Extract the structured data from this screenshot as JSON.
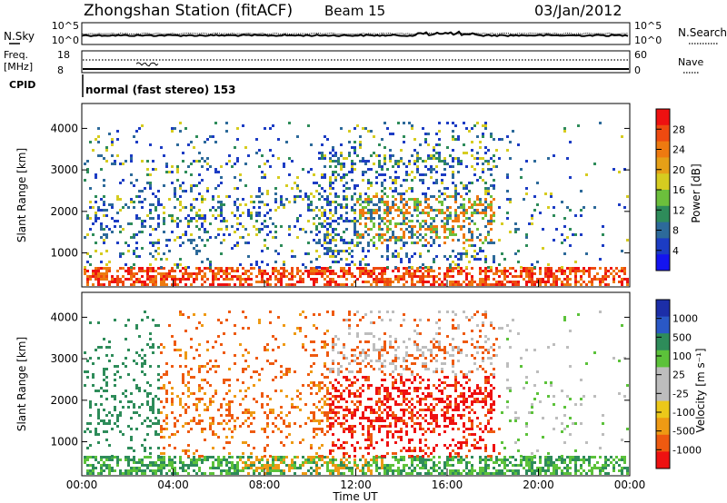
{
  "header": {
    "station": "Zhongshan Station (fitACF)",
    "beam": "Beam 15",
    "date": "03/Jan/2012"
  },
  "status_panels": {
    "nsky_label": "N.Sky",
    "nsky_ticks": [
      "10^5",
      "10^0"
    ],
    "nsearch_label": "N.Search",
    "nsearch_ticks": [
      "10^5",
      "10^0"
    ],
    "freq_label": "Freq.",
    "freq_unit": "[MHz]",
    "freq_ticks": [
      "18",
      "8"
    ],
    "nave_label": "Nave",
    "nave_ticks": [
      "60",
      "0"
    ],
    "cpid_label": "CPID",
    "cpid_value": "normal (fast stereo) 153"
  },
  "colors": {
    "scale_red": "#ee1111",
    "scale_orange": "#ee7a10",
    "scale_green": "#2e8c5a",
    "scale_blue": "#1c3cc4",
    "scale_grey": "#bdbdbd"
  },
  "chart_data": [
    {
      "type": "heatmap",
      "name": "power",
      "ylabel": "Slant Range [km]",
      "yticks": [
        "4000",
        "3000",
        "2000",
        "1000"
      ],
      "ylim": [
        180,
        4600
      ],
      "colorbar_label": "Power [dB]",
      "colorbar_ticks": [
        "28",
        "24",
        "20",
        "16",
        "12",
        "8",
        "4"
      ],
      "colorbar_colors": [
        "#ee1111",
        "#ee4a10",
        "#ee7a10",
        "#e6a017",
        "#d6cc20",
        "#6cbf3c",
        "#2e8c5a",
        "#2d6a9a",
        "#1c3cc4",
        "#1414f0"
      ]
    },
    {
      "type": "heatmap",
      "name": "velocity",
      "ylabel": "Slant Range [km]",
      "yticks": [
        "4000",
        "3000",
        "2000",
        "1000"
      ],
      "ylim": [
        180,
        4600
      ],
      "colorbar_label": "Velocity [m s⁻¹]",
      "colorbar_ticks": [
        "1000",
        "500",
        "100",
        "25",
        "-25",
        "-100",
        "-500",
        "-1000"
      ],
      "colorbar_colors": [
        "#1c2ea8",
        "#2a58c6",
        "#2e8c5a",
        "#5cc23a",
        "#bdbdbd",
        "#bdbdbd",
        "#ecc81a",
        "#ee9a14",
        "#ee5a10",
        "#ee1111"
      ]
    }
  ],
  "x_axis": {
    "ticks": [
      "00:00",
      "04:00",
      "08:00",
      "12:00",
      "16:00",
      "20:00",
      "00:00"
    ],
    "label": "Time UT"
  }
}
